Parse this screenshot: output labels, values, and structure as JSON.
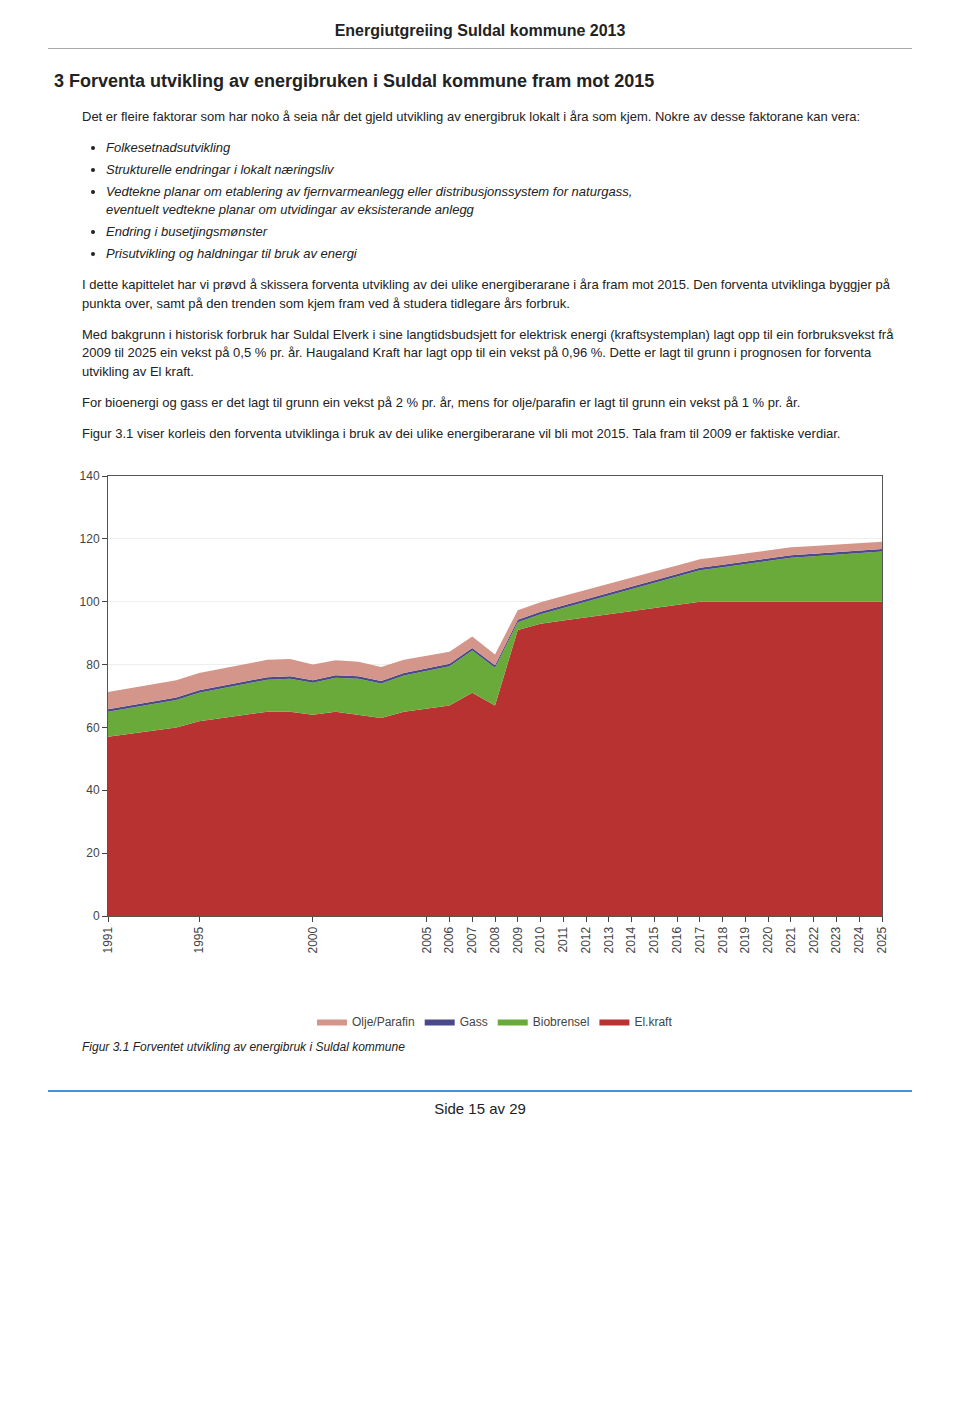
{
  "chart_data": {
    "type": "area",
    "stacked": true,
    "title": "Figur 3.1 Forventet utvikling av energibruk i Suldal kommune",
    "x": [
      1991,
      1992,
      1993,
      1994,
      1995,
      1996,
      1997,
      1998,
      1999,
      2000,
      2001,
      2002,
      2003,
      2004,
      2005,
      2006,
      2007,
      2008,
      2009,
      2010,
      2011,
      2012,
      2013,
      2014,
      2015,
      2016,
      2017,
      2018,
      2019,
      2020,
      2021,
      2022,
      2023,
      2024,
      2025
    ],
    "series": [
      {
        "name": "El.kraft",
        "color": "#b83232",
        "values": [
          57,
          58,
          59,
          60,
          62,
          63,
          64,
          65,
          65,
          64,
          65,
          64,
          63,
          65,
          66,
          67,
          71,
          67,
          91,
          93,
          94,
          95,
          96,
          97,
          98,
          99,
          100,
          100,
          100,
          100,
          100,
          100,
          100,
          100,
          100
        ]
      },
      {
        "name": "Biobrensel",
        "color": "#6aaa3a",
        "values": [
          8.0,
          8.2,
          8.5,
          8.7,
          9.0,
          9.5,
          9.8,
          10.2,
          10.5,
          10.2,
          10.8,
          11.5,
          11.0,
          11.5,
          12.0,
          12.5,
          13.5,
          12.0,
          2.5,
          3.0,
          4.0,
          5.0,
          6.0,
          7.0,
          8.0,
          9.0,
          10.0,
          11.0,
          12.0,
          13.0,
          14.0,
          14.5,
          15.0,
          15.5,
          16.0
        ]
      },
      {
        "name": "Gass",
        "color": "#4a4a8a",
        "values": [
          0.8,
          0.8,
          0.8,
          0.8,
          0.8,
          0.8,
          0.8,
          0.8,
          0.8,
          0.8,
          0.8,
          0.8,
          0.8,
          0.8,
          0.8,
          0.8,
          0.8,
          0.8,
          0.8,
          0.8,
          0.8,
          0.8,
          0.8,
          0.8,
          0.8,
          0.8,
          0.8,
          0.8,
          0.8,
          0.8,
          0.8,
          0.8,
          0.8,
          0.8,
          0.8
        ]
      },
      {
        "name": "Olje/Parafin",
        "color": "#d4958a",
        "values": [
          5.5,
          5.5,
          5.5,
          5.5,
          5.5,
          5.5,
          5.5,
          5.5,
          5.5,
          5.0,
          4.8,
          4.6,
          4.4,
          4.2,
          4.0,
          3.8,
          3.6,
          3.4,
          3.0,
          3.0,
          3.0,
          3.0,
          2.9,
          2.8,
          2.8,
          2.7,
          2.7,
          2.6,
          2.6,
          2.5,
          2.5,
          2.4,
          2.4,
          2.3,
          2.3
        ]
      }
    ],
    "xlim": [
      1991,
      2025
    ],
    "xticks": [
      1991,
      1995,
      2000,
      2005,
      2006,
      2007,
      2008,
      2009,
      2010,
      2011,
      2012,
      2013,
      2014,
      2015,
      2016,
      2017,
      2018,
      2019,
      2020,
      2021,
      2022,
      2023,
      2024,
      2025
    ],
    "ylim": [
      0,
      140
    ],
    "yticks": [
      0,
      20,
      40,
      60,
      80,
      100,
      120,
      140
    ],
    "grid": true,
    "legend": "bottom"
  },
  "page": {
    "header": "Energiutgreiing Suldal kommune 2013",
    "section_title": "3   Forventa utvikling av energibruken i Suldal kommune fram mot 2015",
    "body1": "Det er fleire faktorar som har noko å seia når det gjeld utvikling av energibruk lokalt i åra som kjem. Nokre av desse faktorane kan vera:",
    "bullets": [
      "Folkesetnadsutvikling",
      "Strukturelle endringar i lokalt næringsliv",
      "Vedtekne planar om etablering av fjernvarmeanlegg eller distribusjonssystem for naturgass,\neventuelt vedtekne planar om utvidingar av eksisterande anlegg",
      "Endring i busetjingsmønster",
      "Prisutvikling og haldningar til bruk av energi"
    ],
    "body2": "I dette kapittelet har vi prøvd å skissera forventa utvikling av dei ulike energiberarane i åra fram mot 2015. Den forventa utviklinga byggjer på punkta over, samt på den trenden som kjem fram ved å studera tidlegare års forbruk.",
    "body3": "Med bakgrunn i historisk forbruk har Suldal Elverk i sine langtidsbudsjett for elektrisk energi (kraftsystemplan) lagt opp til ein forbruksvekst  frå 2009 til 2025 ein vekst på 0,5 % pr. år. Haugaland Kraft har lagt opp til ein vekst på 0,96 %. Dette er lagt til grunn i prognosen for forventa utvikling av El kraft.",
    "body4": "For bioenergi og gass er det lagt til grunn ein vekst på 2 % pr. år, mens for olje/parafin er lagt til grunn ein vekst på 1 % pr. år.",
    "body5": "Figur 3.1 viser korleis den forventa utviklinga i bruk av dei ulike energiberarane vil bli mot 2015. Tala fram til 2009 er faktiske verdiar.",
    "footer": "Side 15 av 29"
  }
}
